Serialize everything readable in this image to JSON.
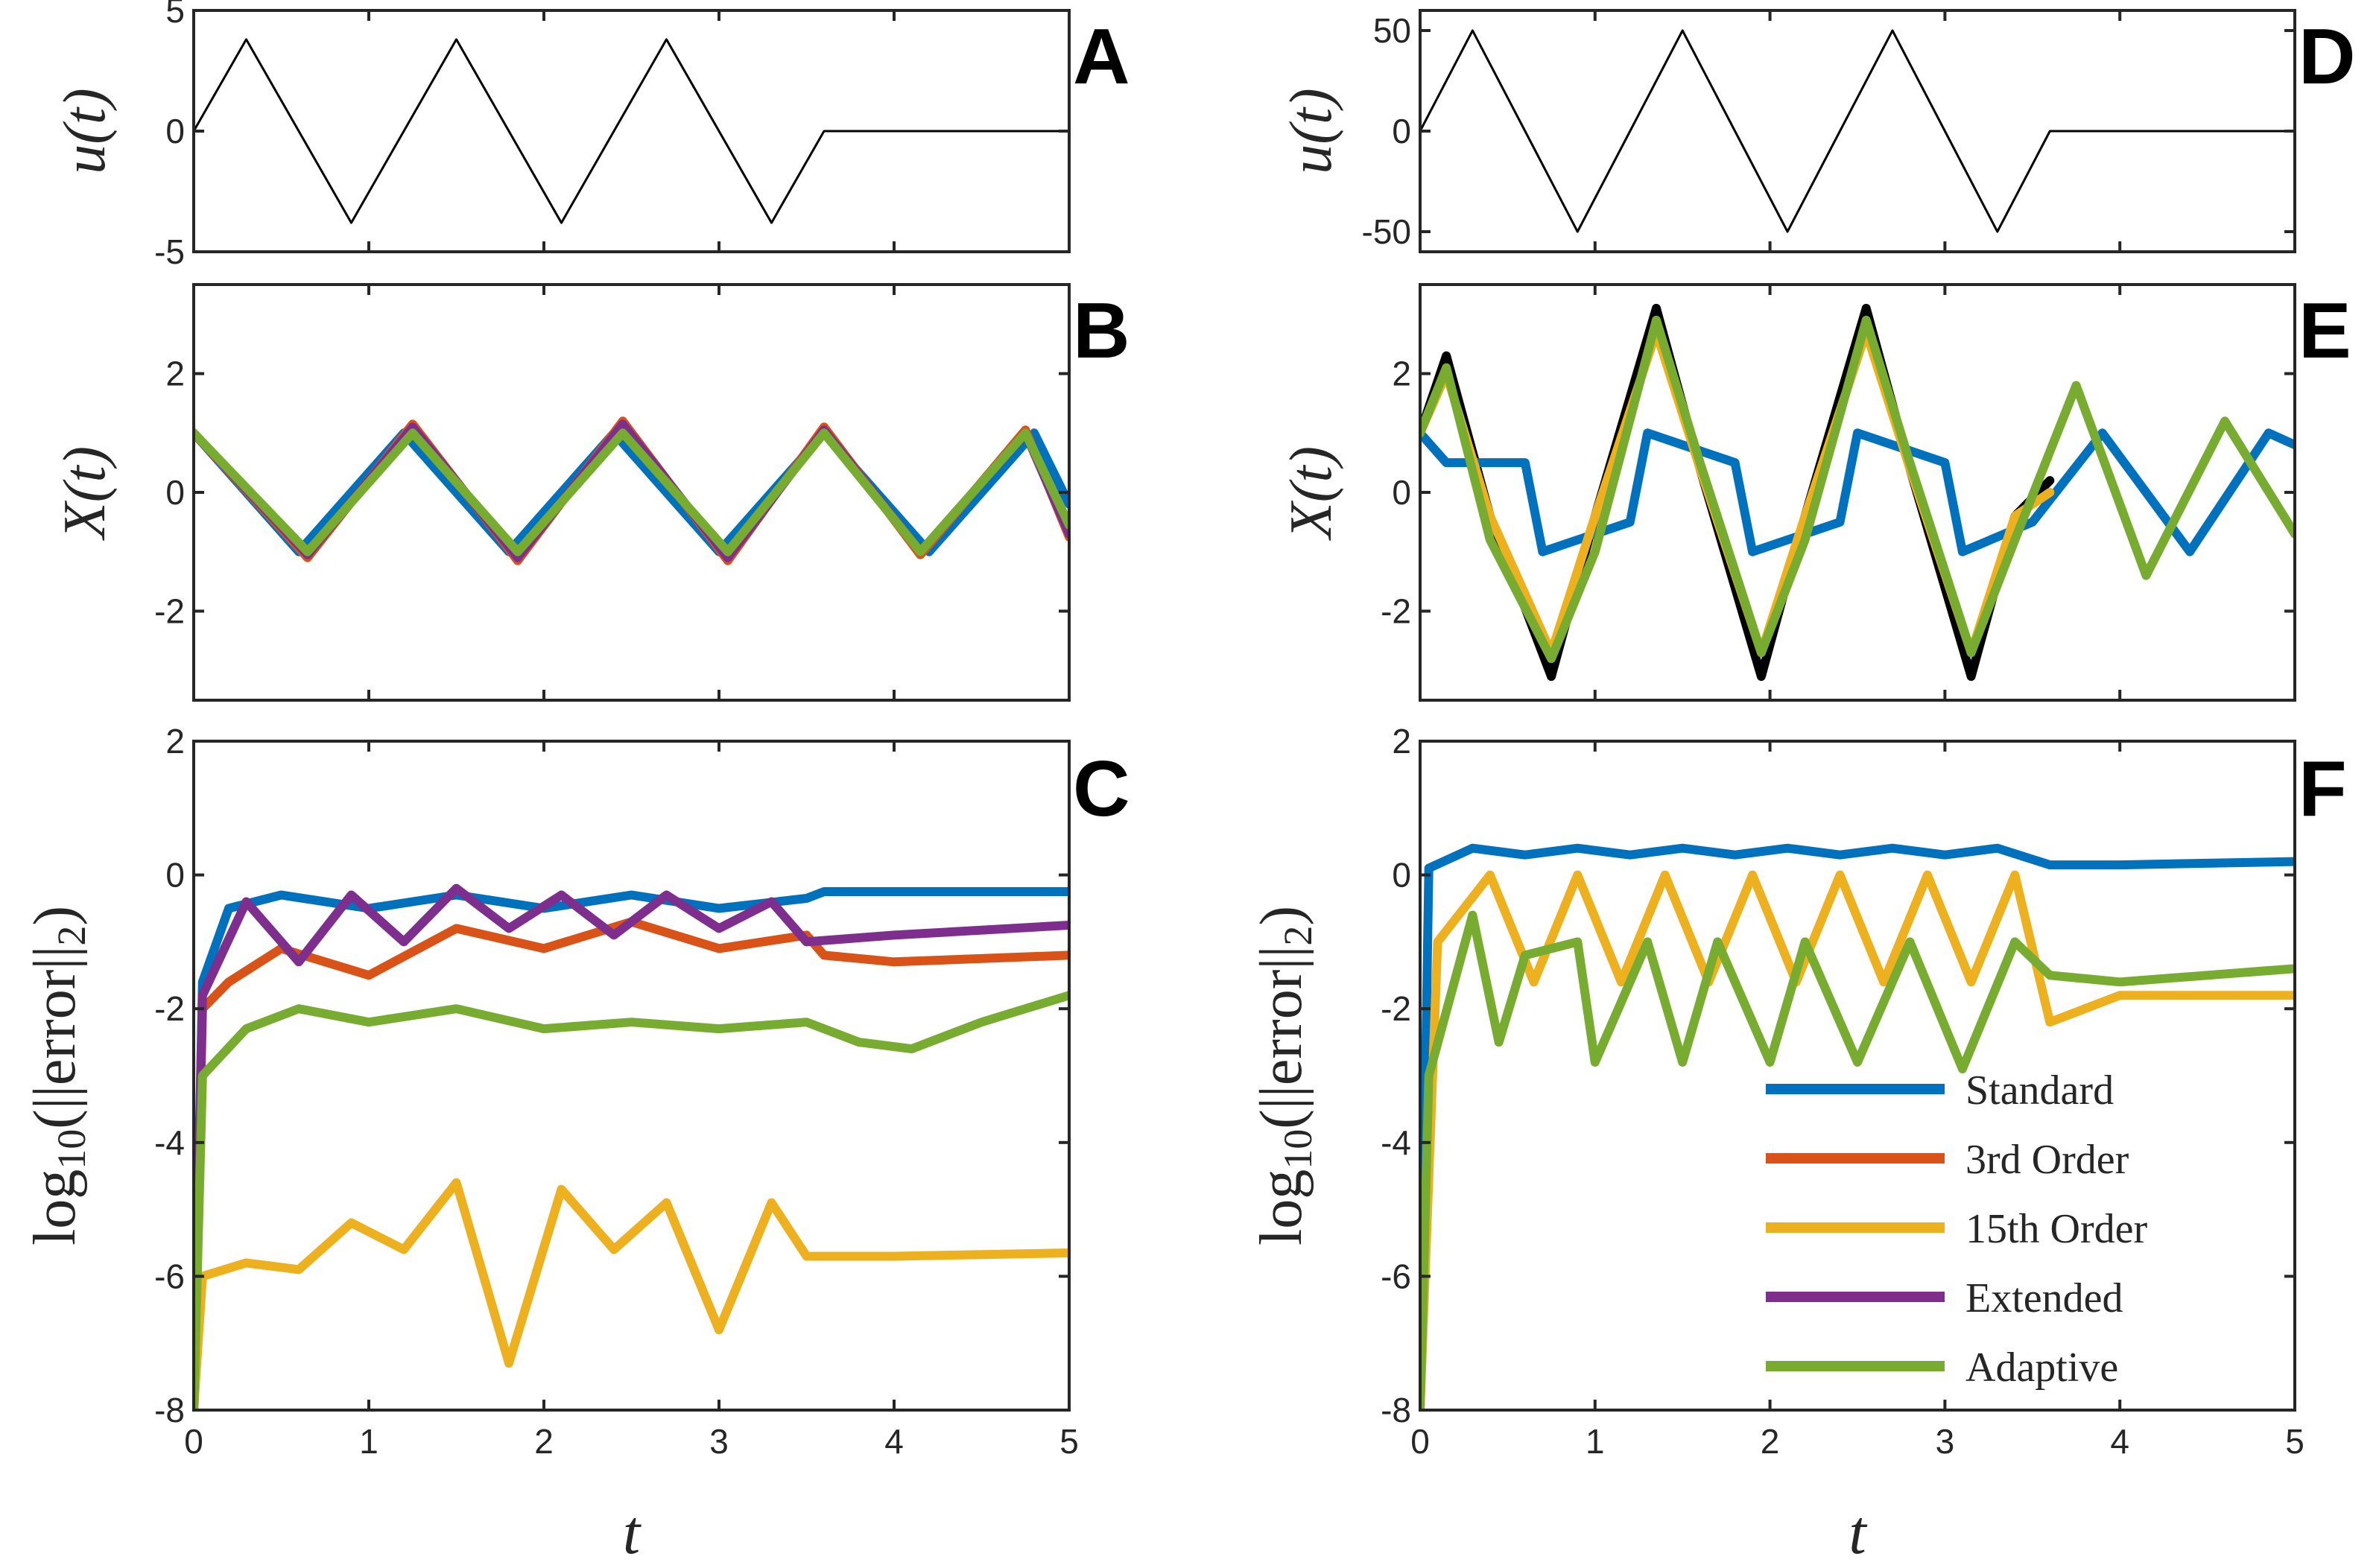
{
  "chart_data": [
    {
      "panel": "A",
      "type": "line",
      "ylabel": "u(t)",
      "xlabel": "",
      "xlim": [
        0,
        5
      ],
      "ylim": [
        -5,
        5
      ],
      "yticks": [
        "5",
        "0",
        "-5"
      ],
      "series": [
        {
          "color": "#000000",
          "description_points": "3.8*sin(2*pi*t/1.2) for t in [0,3.6], 0 for t in [3.6,5]",
          "x": [
            0,
            0.3,
            0.6,
            0.9,
            1.2,
            1.5,
            1.8,
            2.1,
            2.4,
            2.7,
            3.0,
            3.3,
            3.6,
            5.0
          ],
          "y": [
            0,
            3.8,
            0,
            -3.8,
            0,
            3.8,
            0,
            -3.8,
            0,
            3.8,
            0,
            -3.8,
            0,
            0
          ]
        }
      ]
    },
    {
      "panel": "B",
      "type": "line",
      "ylabel": "X(t)",
      "xlabel": "",
      "xlim": [
        0,
        5
      ],
      "ylim": [
        -3.5,
        3.5
      ],
      "yticks": [
        "2",
        "0",
        "-2"
      ],
      "series": [
        {
          "color": "#0072BD",
          "x": [
            0,
            0.6,
            1.2,
            1.8,
            2.4,
            3.0,
            3.6,
            4.2,
            4.8,
            5.0
          ],
          "y": [
            1.0,
            -1.0,
            1.0,
            -1.0,
            1.0,
            -1.0,
            1.0,
            -1.0,
            1.0,
            -0.2
          ]
        },
        {
          "color": "#D95319",
          "x": [
            0,
            0.65,
            1.25,
            1.85,
            2.45,
            3.05,
            3.6,
            4.15,
            4.75,
            5.0
          ],
          "y": [
            1.0,
            -1.1,
            1.15,
            -1.15,
            1.2,
            -1.15,
            1.1,
            -1.05,
            1.05,
            -0.75
          ]
        },
        {
          "color": "#7E2F8E",
          "x": [
            0,
            0.65,
            1.25,
            1.85,
            2.45,
            3.05,
            3.6,
            4.15,
            4.75,
            5.0
          ],
          "y": [
            1.0,
            -1.05,
            1.1,
            -1.1,
            1.15,
            -1.1,
            1.05,
            -1.0,
            1.0,
            -0.7
          ]
        },
        {
          "color": "#77AC30",
          "x": [
            0,
            0.65,
            1.25,
            1.85,
            2.45,
            3.05,
            3.6,
            4.15,
            4.75,
            5.0
          ],
          "y": [
            1.0,
            -1.0,
            1.0,
            -1.0,
            1.0,
            -1.0,
            1.0,
            -1.0,
            1.0,
            -0.55
          ]
        }
      ]
    },
    {
      "panel": "C",
      "type": "line",
      "ylabel": "log10(||error||2)",
      "xlabel": "t",
      "xlim": [
        0,
        5
      ],
      "ylim": [
        -8,
        2
      ],
      "xticks": [
        "0",
        "1",
        "2",
        "3",
        "4",
        "5"
      ],
      "yticks": [
        "2",
        "0",
        "-2",
        "-4",
        "-6",
        "-8"
      ],
      "series": [
        {
          "color": "#0072BD",
          "x": [
            0,
            0.05,
            0.2,
            0.5,
            1.0,
            1.5,
            2.0,
            2.5,
            3.0,
            3.5,
            3.6,
            4.0,
            5.0
          ],
          "y": [
            -8,
            -1.6,
            -0.5,
            -0.3,
            -0.5,
            -0.3,
            -0.5,
            -0.3,
            -0.5,
            -0.35,
            -0.25,
            -0.25,
            -0.25
          ]
        },
        {
          "color": "#D95319",
          "x": [
            0,
            0.05,
            0.2,
            0.5,
            1.0,
            1.5,
            2.0,
            2.5,
            3.0,
            3.5,
            3.6,
            4.0,
            5.0
          ],
          "y": [
            -8,
            -2.0,
            -1.6,
            -1.1,
            -1.5,
            -0.8,
            -1.1,
            -0.7,
            -1.1,
            -0.9,
            -1.2,
            -1.3,
            -1.2
          ]
        },
        {
          "color": "#EDB120",
          "x": [
            0,
            0.05,
            0.3,
            0.6,
            0.9,
            1.2,
            1.5,
            1.8,
            2.1,
            2.4,
            2.7,
            3.0,
            3.3,
            3.5,
            4.0,
            5.0
          ],
          "y": [
            -8,
            -6.0,
            -5.8,
            -5.9,
            -5.2,
            -5.6,
            -4.6,
            -7.3,
            -4.7,
            -5.6,
            -4.9,
            -6.8,
            -4.9,
            -5.7,
            -5.7,
            -5.65
          ]
        },
        {
          "color": "#7E2F8E",
          "x": [
            0,
            0.05,
            0.3,
            0.6,
            0.9,
            1.2,
            1.5,
            1.8,
            2.1,
            2.4,
            2.7,
            3.0,
            3.3,
            3.5,
            4.0,
            5.0
          ],
          "y": [
            -8,
            -1.8,
            -0.4,
            -1.3,
            -0.3,
            -1.0,
            -0.2,
            -0.8,
            -0.3,
            -0.9,
            -0.3,
            -0.8,
            -0.4,
            -1.0,
            -0.9,
            -0.75
          ]
        },
        {
          "color": "#77AC30",
          "x": [
            0,
            0.05,
            0.3,
            0.6,
            1.0,
            1.5,
            2.0,
            2.5,
            3.0,
            3.5,
            3.8,
            4.1,
            4.5,
            5.0
          ],
          "y": [
            -8,
            -3.0,
            -2.3,
            -2.0,
            -2.2,
            -2.0,
            -2.3,
            -2.2,
            -2.3,
            -2.2,
            -2.5,
            -2.6,
            -2.2,
            -1.8
          ]
        }
      ]
    },
    {
      "panel": "D",
      "type": "line",
      "ylabel": "u(t)",
      "xlabel": "",
      "xlim": [
        0,
        5
      ],
      "ylim": [
        -60,
        60
      ],
      "yticks": [
        "50",
        "0",
        "-50"
      ],
      "series": [
        {
          "color": "#000000",
          "x": [
            0,
            0.3,
            0.6,
            0.9,
            1.2,
            1.5,
            1.8,
            2.1,
            2.4,
            2.7,
            3.0,
            3.3,
            3.6,
            5.0
          ],
          "y": [
            0,
            50,
            0,
            -50,
            0,
            50,
            0,
            -50,
            0,
            50,
            0,
            -50,
            0,
            0
          ]
        }
      ]
    },
    {
      "panel": "E",
      "type": "line",
      "ylabel": "X(t)",
      "xlabel": "",
      "xlim": [
        0,
        5
      ],
      "ylim": [
        -3.5,
        3.5
      ],
      "yticks": [
        "2",
        "0",
        "-2"
      ],
      "series": [
        {
          "color": "#000000",
          "x": [
            0,
            0.15,
            0.4,
            0.75,
            1.0,
            1.35,
            1.6,
            1.95,
            2.2,
            2.55,
            2.8,
            3.15,
            3.4,
            3.6
          ],
          "y": [
            1.0,
            2.3,
            -0.4,
            -3.1,
            -0.4,
            3.1,
            0.4,
            -3.1,
            -0.4,
            3.1,
            0.4,
            -3.1,
            -0.4,
            0.2
          ]
        },
        {
          "color": "#0072BD",
          "x": [
            0,
            0.15,
            0.6,
            0.7,
            1.2,
            1.3,
            1.8,
            1.9,
            2.4,
            2.5,
            3.0,
            3.1,
            3.5,
            3.9,
            4.4,
            4.85,
            5.0
          ],
          "y": [
            1.0,
            0.5,
            0.5,
            -1.0,
            -0.5,
            1.0,
            0.5,
            -1.0,
            -0.5,
            1.0,
            0.5,
            -1.0,
            -0.5,
            1.0,
            -1.0,
            1.0,
            0.8
          ]
        },
        {
          "color": "#EDB120",
          "x": [
            0,
            0.15,
            0.4,
            0.75,
            1.0,
            1.35,
            1.6,
            1.95,
            2.2,
            2.55,
            2.8,
            3.15,
            3.4,
            3.6
          ],
          "y": [
            1.0,
            2.0,
            -0.4,
            -2.7,
            -0.4,
            2.7,
            0.4,
            -2.7,
            -0.4,
            2.7,
            0.4,
            -2.7,
            -0.4,
            0.0
          ]
        },
        {
          "color": "#77AC30",
          "x": [
            0,
            0.15,
            0.4,
            0.75,
            1.0,
            1.35,
            1.6,
            1.95,
            2.2,
            2.55,
            2.8,
            3.15,
            3.4,
            3.75,
            4.15,
            4.6,
            5.0
          ],
          "y": [
            1.0,
            2.1,
            -0.8,
            -2.8,
            -1.0,
            2.9,
            0.5,
            -2.7,
            -0.8,
            2.9,
            0.5,
            -2.7,
            -0.8,
            1.8,
            -1.4,
            1.2,
            -0.7
          ]
        }
      ]
    },
    {
      "panel": "F",
      "type": "line",
      "ylabel": "log10(||error||2)",
      "xlabel": "t",
      "xlim": [
        0,
        5
      ],
      "ylim": [
        -8,
        2
      ],
      "xticks": [
        "0",
        "1",
        "2",
        "3",
        "4",
        "5"
      ],
      "yticks": [
        "2",
        "0",
        "-2",
        "-4",
        "-6",
        "-8"
      ],
      "series": [
        {
          "color": "#0072BD",
          "x": [
            0,
            0.05,
            0.3,
            0.6,
            0.9,
            1.2,
            1.5,
            1.8,
            2.1,
            2.4,
            2.7,
            3.0,
            3.3,
            3.6,
            4.0,
            5.0
          ],
          "y": [
            -8,
            0.1,
            0.4,
            0.3,
            0.4,
            0.3,
            0.4,
            0.3,
            0.4,
            0.3,
            0.4,
            0.3,
            0.4,
            0.15,
            0.15,
            0.2
          ]
        },
        {
          "color": "#EDB120",
          "x": [
            0,
            0.1,
            0.4,
            0.65,
            0.9,
            1.15,
            1.4,
            1.65,
            1.9,
            2.15,
            2.4,
            2.65,
            2.9,
            3.15,
            3.4,
            3.6,
            4.0,
            5.0
          ],
          "y": [
            -8,
            -1.0,
            0.0,
            -1.6,
            0.0,
            -1.6,
            0.0,
            -1.6,
            0.0,
            -1.6,
            0.0,
            -1.6,
            0.0,
            -1.6,
            0.0,
            -2.2,
            -1.8,
            -1.8
          ]
        },
        {
          "color": "#77AC30",
          "x": [
            0,
            0.05,
            0.3,
            0.45,
            0.6,
            0.9,
            1.0,
            1.3,
            1.5,
            1.7,
            2.0,
            2.2,
            2.5,
            2.8,
            3.1,
            3.4,
            3.6,
            4.0,
            4.5,
            5.0
          ],
          "y": [
            -8,
            -3.0,
            -0.6,
            -2.5,
            -1.2,
            -1.0,
            -2.8,
            -1.0,
            -2.8,
            -1.0,
            -2.8,
            -1.0,
            -2.8,
            -1.0,
            -2.9,
            -1.0,
            -1.5,
            -1.6,
            -1.5,
            -1.4
          ]
        }
      ]
    }
  ],
  "panel_labels": [
    "A",
    "B",
    "C",
    "D",
    "E",
    "F"
  ],
  "legend": [
    {
      "name": "Standard",
      "color": "#0072BD"
    },
    {
      "name": "3rd Order",
      "color": "#D95319"
    },
    {
      "name": "15th Order",
      "color": "#EDB120"
    },
    {
      "name": "Extended",
      "color": "#7E2F8E"
    },
    {
      "name": "Adaptive",
      "color": "#77AC30"
    }
  ],
  "colors": {
    "axis": "#262626",
    "standard": "#0072BD",
    "third": "#D95319",
    "fifteenth": "#EDB120",
    "extended": "#7E2F8E",
    "adaptive": "#77AC30"
  }
}
